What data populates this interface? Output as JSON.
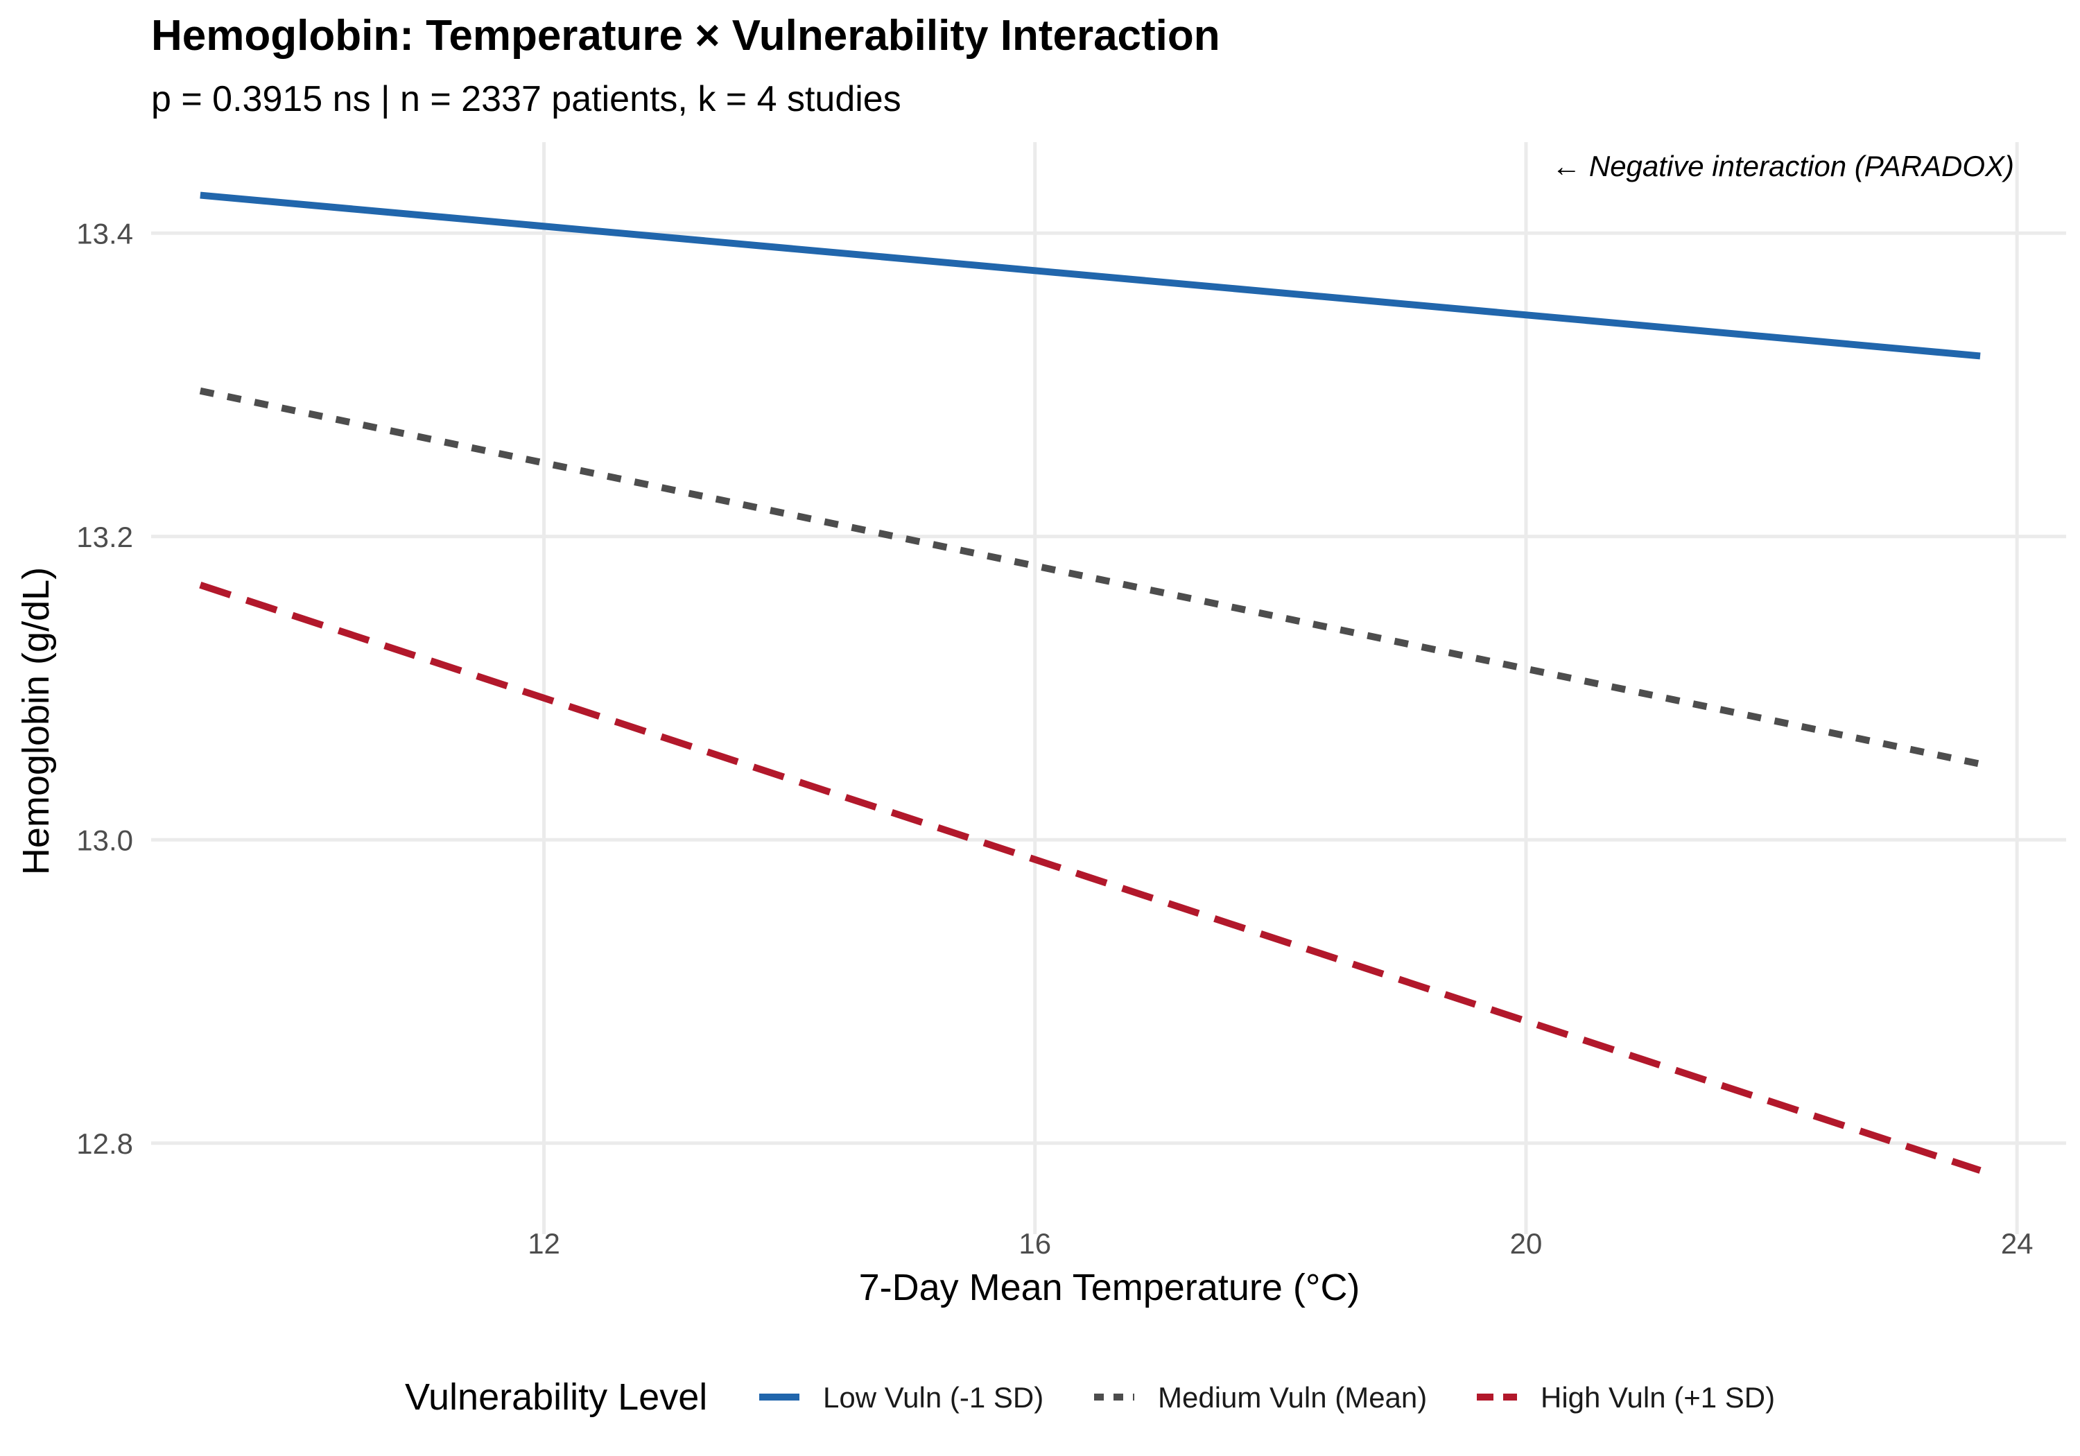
{
  "chart_data": {
    "type": "line",
    "title": "Hemoglobin: Temperature × Vulnerability Interaction",
    "subtitle": "p = 0.3915 ns | n = 2337 patients, k = 4 studies",
    "xlabel": "7-Day Mean Temperature (°C)",
    "ylabel": "Hemoglobin (g/dL)",
    "xlim": [
      8.8,
      24.4
    ],
    "ylim": [
      12.74,
      13.46
    ],
    "x_ticks": [
      12,
      16,
      20,
      24
    ],
    "y_ticks": [
      12.8,
      13.0,
      13.2,
      13.4
    ],
    "x_tick_labels": [
      "12",
      "16",
      "20",
      "24"
    ],
    "y_tick_labels": [
      "12.8",
      "13.0",
      "13.2",
      "13.4"
    ],
    "grid": true,
    "legend": {
      "title": "Vulnerability Level",
      "position": "bottom"
    },
    "annotation": "← Negative interaction (PARADOX)",
    "series": [
      {
        "name": "Low Vuln (-1 SD)",
        "color": "#2166ac",
        "dash": "solid",
        "x": [
          9.2,
          23.7
        ],
        "y": [
          13.425,
          13.319
        ]
      },
      {
        "name": "Medium Vuln (Mean)",
        "color": "#4d4d4d",
        "dash": "dotted",
        "x": [
          9.2,
          23.7
        ],
        "y": [
          13.296,
          13.05
        ]
      },
      {
        "name": "High Vuln (+1 SD)",
        "color": "#b2182b",
        "dash": "dashed",
        "x": [
          9.2,
          23.7
        ],
        "y": [
          13.168,
          12.782
        ]
      }
    ]
  }
}
